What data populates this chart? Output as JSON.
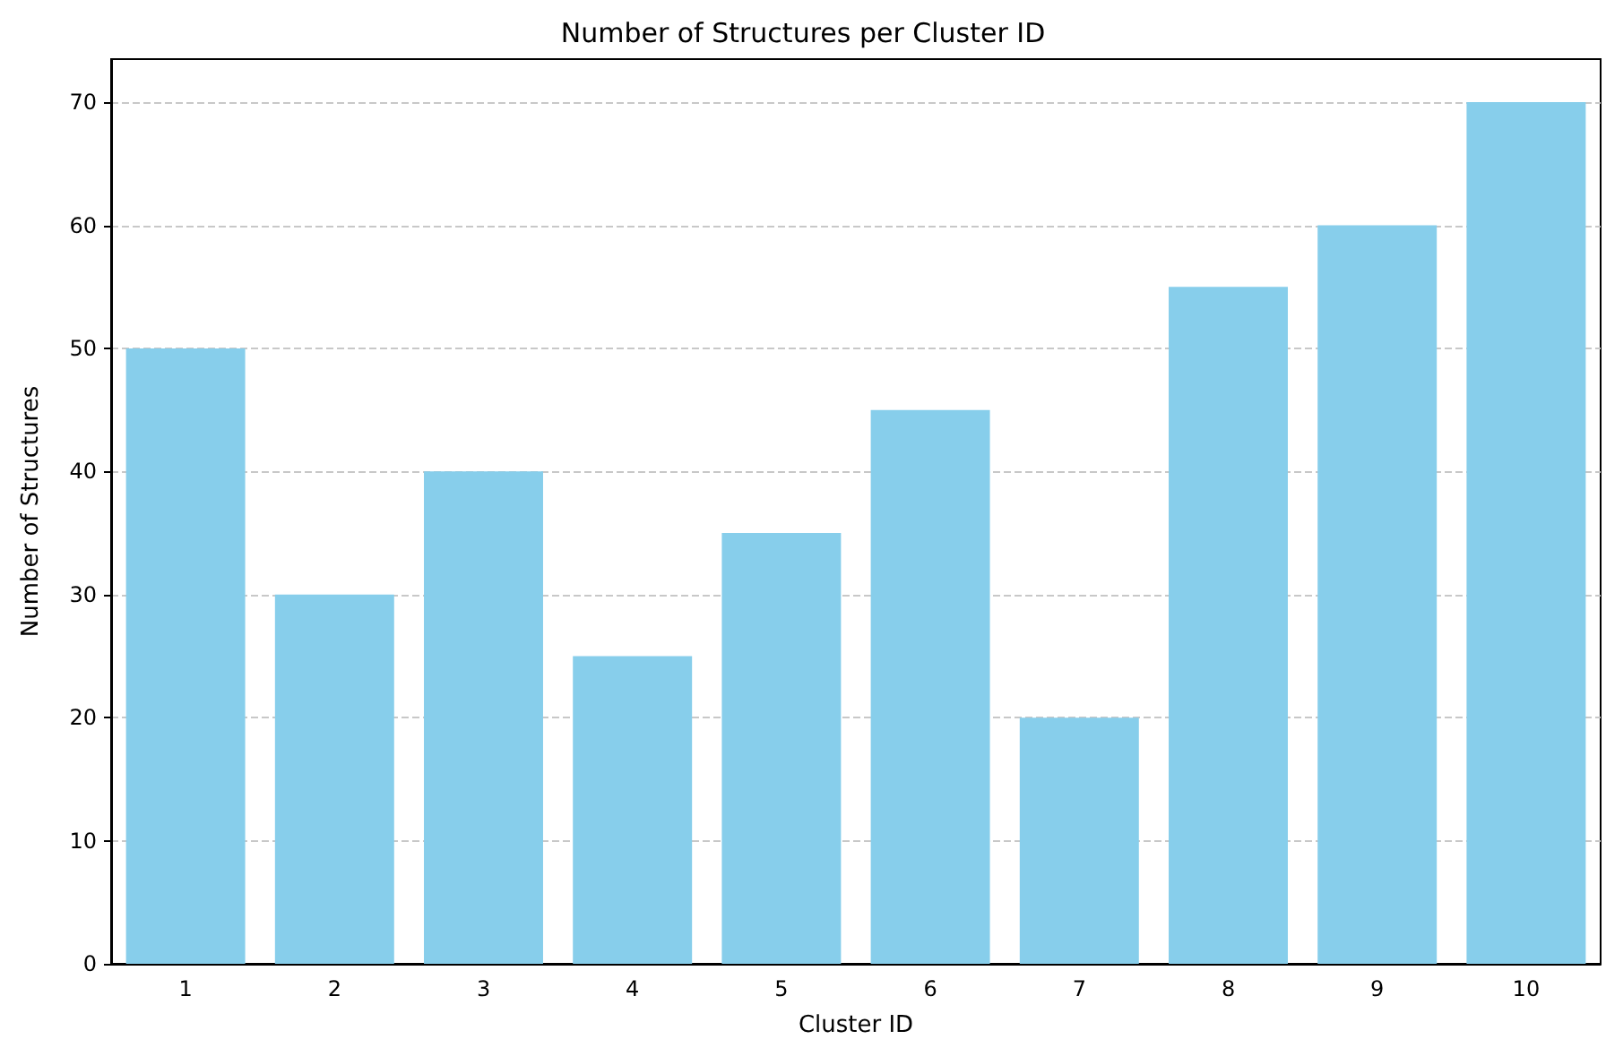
{
  "chart_data": {
    "type": "bar",
    "title": "Number of Structures per Cluster ID",
    "xlabel": "Cluster ID",
    "ylabel": "Number of Structures",
    "categories": [
      "1",
      "2",
      "3",
      "4",
      "5",
      "6",
      "7",
      "8",
      "9",
      "10"
    ],
    "values": [
      50,
      30,
      40,
      25,
      35,
      45,
      20,
      55,
      60,
      70
    ],
    "color": "#87ceeb",
    "ylim": [
      0,
      73.5
    ],
    "yticks": [
      0,
      10,
      20,
      30,
      40,
      50,
      60,
      70
    ],
    "grid": "y"
  }
}
